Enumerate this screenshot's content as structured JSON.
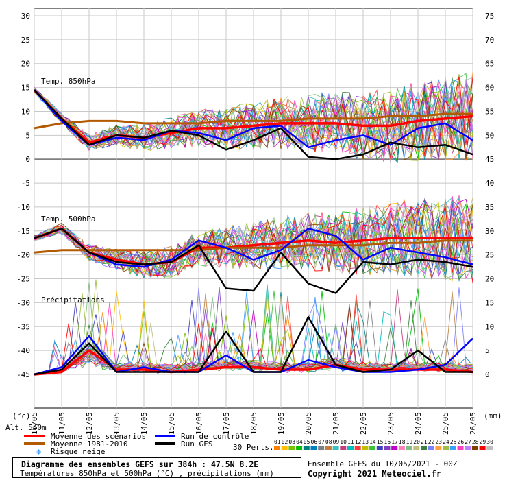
{
  "chart_data": {
    "type": "line",
    "x_dates": [
      "10/05",
      "11/05",
      "12/05",
      "13/05",
      "14/05",
      "15/05",
      "16/05",
      "17/05",
      "18/05",
      "19/05",
      "20/05",
      "21/05",
      "22/05",
      "23/05",
      "24/05",
      "25/05",
      "26/05"
    ],
    "y_left_ticks": [
      "30",
      "25",
      "20",
      "15",
      "10",
      "5",
      "0",
      "-5",
      "-10",
      "-15",
      "-20",
      "-25",
      "-30",
      "-35",
      "-40",
      "-45"
    ],
    "y_right_ticks": [
      "75",
      "70",
      "65",
      "60",
      "55",
      "50",
      "45",
      "40",
      "35",
      "30",
      "25",
      "20",
      "15",
      "10",
      "5",
      "0"
    ],
    "ylim_left": [
      -45,
      30
    ],
    "ylim_right": [
      0,
      75
    ],
    "unit_left": "(°c)",
    "unit_right": "(mm)",
    "panel_labels": [
      "Temp. 850hPa",
      "Temp. 500hPa",
      "Précipitations"
    ],
    "series": [
      {
        "name": "Moyenne des scénarios",
        "color": "#ff0000",
        "t850": [
          14.5,
          8.5,
          3.5,
          5.0,
          4.5,
          5.5,
          6.5,
          6.5,
          7.0,
          7.5,
          7.5,
          7.5,
          7.0,
          7.0,
          8.0,
          8.5,
          9.0
        ],
        "t500": [
          -16.5,
          -14.5,
          -19.5,
          -21.0,
          -22.0,
          -21.5,
          -18.5,
          -18.5,
          -18.0,
          -17.5,
          -17.0,
          -17.5,
          -17.0,
          -16.5,
          -16.5,
          -16.5,
          -16.5
        ],
        "precip": [
          0.0,
          0.5,
          5.0,
          1.0,
          1.0,
          0.5,
          1.0,
          1.5,
          1.5,
          1.0,
          1.0,
          2.0,
          1.0,
          1.0,
          1.0,
          1.0,
          0.5
        ]
      },
      {
        "name": "Moyenne 1981-2010",
        "color": "#b35900",
        "t850": [
          6.5,
          7.5,
          8.0,
          8.0,
          7.5,
          7.5,
          7.5,
          8.0,
          8.0,
          8.0,
          8.5,
          8.5,
          8.5,
          9.0,
          9.0,
          9.5,
          9.5
        ],
        "t500": [
          -19.5,
          -19.0,
          -19.0,
          -19.0,
          -19.0,
          -19.0,
          -19.0,
          -18.5,
          -18.5,
          -18.5,
          -18.0,
          -18.0,
          -18.0,
          -17.5,
          -17.5,
          -17.0,
          -17.0
        ]
      },
      {
        "name": "Run de contrôle",
        "color": "#0000ff",
        "t850": [
          14.5,
          8.0,
          3.0,
          4.5,
          4.0,
          6.0,
          5.5,
          4.0,
          6.5,
          7.0,
          2.5,
          4.0,
          5.0,
          3.0,
          6.5,
          7.5,
          4.0
        ],
        "t500": [
          -16.5,
          -14.5,
          -19.5,
          -22.0,
          -22.5,
          -21.0,
          -17.0,
          -18.5,
          -21.0,
          -19.0,
          -14.5,
          -16.0,
          -21.0,
          -18.5,
          -19.5,
          -20.5,
          -22.0
        ],
        "precip": [
          0.0,
          1.5,
          8.0,
          0.5,
          1.5,
          0.5,
          0.5,
          4.0,
          0.5,
          0.5,
          3.0,
          1.5,
          0.5,
          0.5,
          1.0,
          2.0,
          7.5
        ]
      },
      {
        "name": "Run GFS",
        "color": "#000000",
        "t850": [
          14.5,
          8.5,
          3.0,
          5.0,
          4.5,
          6.0,
          5.0,
          2.0,
          4.0,
          6.5,
          0.5,
          0.0,
          1.0,
          3.5,
          2.5,
          3.0,
          1.0
        ],
        "t500": [
          -16.5,
          -14.5,
          -19.5,
          -21.5,
          -22.0,
          -21.5,
          -18.0,
          -27.0,
          -27.5,
          -19.5,
          -26.0,
          -28.0,
          -21.5,
          -22.0,
          -21.0,
          -21.5,
          -22.5
        ],
        "precip": [
          0.0,
          1.0,
          6.5,
          0.5,
          0.5,
          0.5,
          0.5,
          9.0,
          0.5,
          0.5,
          12.0,
          2.0,
          0.5,
          1.0,
          5.0,
          0.5,
          0.5
        ]
      }
    ],
    "perturbations_label": "30 Perts.",
    "perturbation_ids": [
      "01",
      "02",
      "03",
      "04",
      "05",
      "06",
      "07",
      "08",
      "09",
      "10",
      "11",
      "12",
      "13",
      "14",
      "15",
      "16",
      "17",
      "18",
      "19",
      "20",
      "21",
      "22",
      "23",
      "24",
      "25",
      "26",
      "27",
      "28",
      "29",
      "30"
    ],
    "perturbation_colors": [
      "#ff7f00",
      "#ffbf00",
      "#7fbf00",
      "#00bf00",
      "#007f7f",
      "#007fbf",
      "#7f7f7f",
      "#bf7f3f",
      "#3fbfbf",
      "#bf3f7f",
      "#00bfbf",
      "#ff3f3f",
      "#bfbf00",
      "#3fbf3f",
      "#3f3fbf",
      "#7f3fbf",
      "#bf00bf",
      "#ff7fbf",
      "#7fbf7f",
      "#bfbf7f",
      "#3f7f3f",
      "#7f7fff",
      "#ff9f3f",
      "#9fbf3f",
      "#3f9fff",
      "#ff3fbf",
      "#bf7fff",
      "#7f3f00",
      "#ff0000",
      "#bfbfbf"
    ]
  },
  "altitude_label": "Alt. 540m",
  "legend": {
    "mean": "Moyenne des scénarios",
    "clim": "Moyenne 1981-2010",
    "control": "Run de contrôle",
    "gfs": "Run GFS",
    "snow": "Risque neige"
  },
  "footer": {
    "title": "Diagramme des ensembles GEFS sur 384h : 47.5N 8.2E",
    "subtitle": "Températures 850hPa et 500hPa (°C) , précipitations (mm)",
    "ensemble_run": "Ensemble GEFS du 10/05/2021 - 00Z",
    "copyright": "Copyright 2021 Meteociel.fr"
  },
  "colors": {
    "mean": "#ff0000",
    "clim": "#b35900",
    "control": "#0000ff",
    "gfs": "#000000",
    "grid": "#c8c8c8",
    "snow_icon": "#3399ff"
  }
}
